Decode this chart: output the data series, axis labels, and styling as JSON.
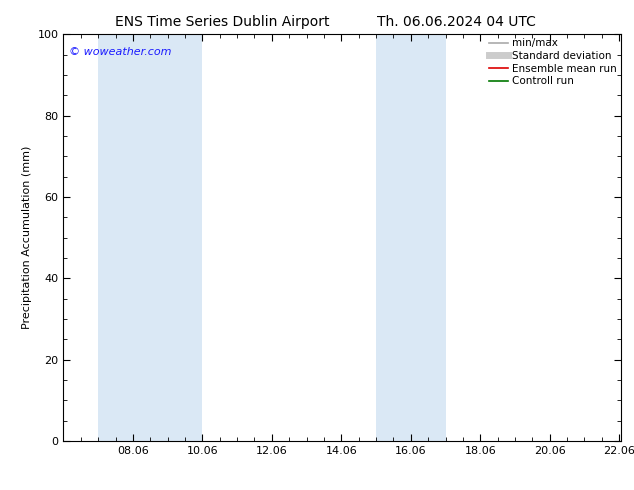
{
  "title_left": "ENS Time Series Dublin Airport",
  "title_right": "Th. 06.06.2024 04 UTC",
  "ylabel": "Precipitation Accumulation (mm)",
  "watermark": "© woweather.com",
  "watermark_color": "#1a1aff",
  "ylim": [
    0,
    100
  ],
  "xlim": [
    6.0,
    22.06
  ],
  "xtick_labels": [
    "08.06",
    "10.06",
    "12.06",
    "14.06",
    "16.06",
    "18.06",
    "20.06",
    "22.06"
  ],
  "xtick_positions": [
    8.0,
    10.0,
    12.0,
    14.0,
    16.0,
    18.0,
    20.0,
    22.0
  ],
  "ytick_positions": [
    0,
    20,
    40,
    60,
    80,
    100
  ],
  "ytick_labels": [
    "0",
    "20",
    "40",
    "60",
    "80",
    "100"
  ],
  "shaded_bands": [
    {
      "x_start": 7.0,
      "x_end": 8.5,
      "color": "#dae8f5"
    },
    {
      "x_start": 8.5,
      "x_end": 10.0,
      "color": "#dae8f5"
    },
    {
      "x_start": 15.0,
      "x_end": 16.0,
      "color": "#dae8f5"
    },
    {
      "x_start": 16.0,
      "x_end": 17.0,
      "color": "#dae8f5"
    }
  ],
  "legend_entries": [
    {
      "label": "min/max",
      "color": "#aaaaaa",
      "lw": 1.2
    },
    {
      "label": "Standard deviation",
      "color": "#cccccc",
      "lw": 5
    },
    {
      "label": "Ensemble mean run",
      "color": "#dd0000",
      "lw": 1.2
    },
    {
      "label": "Controll run",
      "color": "#007700",
      "lw": 1.2
    }
  ],
  "bg_color": "#ffffff",
  "title_fontsize": 10,
  "label_fontsize": 8,
  "tick_fontsize": 8,
  "legend_fontsize": 7.5
}
